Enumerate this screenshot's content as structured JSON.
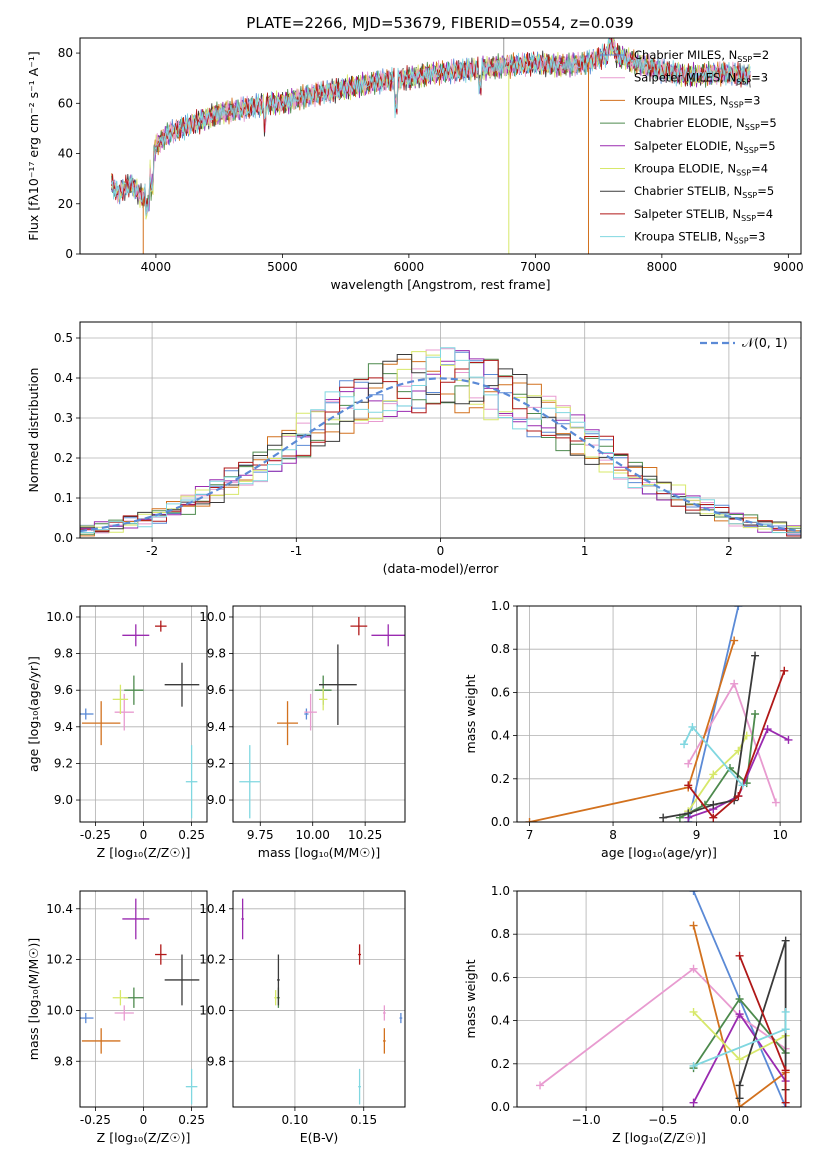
{
  "figure_title": "PLATE=2266, MJD=53679, FIBERID=0554, z=0.039",
  "models": [
    {
      "name": "Chabrier MILES",
      "nssp": "2",
      "color": "#5b8ad6"
    },
    {
      "name": "Salpeter MILES",
      "nssp": "3",
      "color": "#e89bd0"
    },
    {
      "name": "Kroupa MILES",
      "nssp": "3",
      "color": "#d2711e"
    },
    {
      "name": "Chabrier ELODIE",
      "nssp": "5",
      "color": "#4d8a4d"
    },
    {
      "name": "Salpeter ELODIE",
      "nssp": "5",
      "color": "#9a2ab0"
    },
    {
      "name": "Kroupa ELODIE",
      "nssp": "4",
      "color": "#d7e86a"
    },
    {
      "name": "Chabrier STELIB",
      "nssp": "5",
      "color": "#3a3a3a"
    },
    {
      "name": "Salpeter STELIB",
      "nssp": "4",
      "color": "#b01818"
    },
    {
      "name": "Kroupa STELIB",
      "nssp": "3",
      "color": "#80d7e0"
    }
  ],
  "legend_suffix": "N",
  "legend_sub": "SSP",
  "chart_data": [
    {
      "id": "spectrum",
      "type": "line",
      "xlabel": "wavelength [Angstrom, rest frame]",
      "ylabel": "Flux [fλ10⁻¹⁷ erg cm⁻² s⁻¹ A⁻¹]",
      "xlim": [
        3400,
        9100
      ],
      "ylim": [
        0,
        86
      ],
      "xticks": [
        4000,
        5000,
        6000,
        7000,
        8000,
        9000
      ],
      "yticks": [
        0,
        20,
        40,
        60,
        80
      ],
      "x": [
        3650,
        3700,
        3800,
        3900,
        4000,
        4100,
        4200,
        4300,
        4400,
        4500,
        4600,
        4700,
        4800,
        4900,
        5000,
        5200,
        5400,
        5600,
        5800,
        6000,
        6200,
        6400,
        6600,
        6800,
        7000,
        7200,
        7400,
        7600,
        7800,
        8000,
        8200,
        8500,
        8700
      ],
      "y": [
        28,
        24,
        28,
        22,
        43,
        48,
        50,
        52,
        54,
        56,
        57,
        58,
        59,
        60,
        60,
        63,
        65,
        67,
        69,
        70,
        72,
        73,
        74,
        75,
        76,
        75,
        76,
        80,
        76,
        73,
        71,
        72,
        71
      ],
      "legend_location": "upper right"
    },
    {
      "id": "residual-hist",
      "type": "line",
      "xlabel": "(data-model)/error",
      "ylabel": "Normed distribution",
      "xlim": [
        -2.5,
        2.5
      ],
      "ylim": [
        0,
        0.54
      ],
      "xticks": [
        -2,
        -1,
        0,
        1,
        2
      ],
      "yticks": [
        0.0,
        0.1,
        0.2,
        0.3,
        0.4,
        0.5
      ],
      "grid": true,
      "series": [
        {
          "name": "𝒩(0, 1)",
          "style": "dashed",
          "color": "#5b8ad6"
        }
      ],
      "legend_location": "upper right"
    },
    {
      "id": "age-vs-z",
      "type": "scatter",
      "xlabel": "Z [log₁₀(Z/Z☉)]",
      "ylabel": "age  [log₁₀(age/yr)]",
      "xlim": [
        -0.33,
        0.33
      ],
      "ylim": [
        8.88,
        10.06
      ],
      "xticks": [
        -0.25,
        0.0,
        0.25
      ],
      "yticks": [
        9.0,
        9.2,
        9.4,
        9.6,
        9.8,
        10.0
      ],
      "grid": true,
      "points": [
        {
          "model": 0,
          "x": -0.3,
          "y": 9.47,
          "xerr": 0.04,
          "yerr": 0.03
        },
        {
          "model": 1,
          "x": -0.1,
          "y": 9.48,
          "xerr": 0.05,
          "yerr": 0.1
        },
        {
          "model": 2,
          "x": -0.22,
          "y": 9.42,
          "xerr": 0.1,
          "yerr": 0.12
        },
        {
          "model": 3,
          "x": -0.05,
          "y": 9.6,
          "xerr": 0.05,
          "yerr": 0.08
        },
        {
          "model": 4,
          "x": -0.04,
          "y": 9.9,
          "xerr": 0.07,
          "yerr": 0.06
        },
        {
          "model": 5,
          "x": -0.12,
          "y": 9.55,
          "xerr": 0.04,
          "yerr": 0.08
        },
        {
          "model": 6,
          "x": 0.2,
          "y": 9.63,
          "xerr": 0.09,
          "yerr": 0.12
        },
        {
          "model": 7,
          "x": 0.09,
          "y": 9.95,
          "xerr": 0.03,
          "yerr": 0.03
        },
        {
          "model": 8,
          "x": 0.25,
          "y": 9.1,
          "xerr": 0.03,
          "yerr": 0.2
        }
      ]
    },
    {
      "id": "age-vs-mass",
      "type": "scatter",
      "xlabel": "mass [log₁₀(M/M☉)]",
      "ylabel": "",
      "xlim": [
        9.62,
        10.44
      ],
      "ylim": [
        8.88,
        10.06
      ],
      "xticks": [
        9.75,
        10.0,
        10.25
      ],
      "xtick_labels": [
        "9.75",
        "10.00",
        "10.25"
      ],
      "yticks": [
        9.0,
        9.2,
        9.4,
        9.6,
        9.8,
        10.0
      ],
      "grid": true,
      "points": [
        {
          "model": 0,
          "x": 9.97,
          "y": 9.47,
          "xerr": 0.01,
          "yerr": 0.03
        },
        {
          "model": 1,
          "x": 9.99,
          "y": 9.48,
          "xerr": 0.03,
          "yerr": 0.1
        },
        {
          "model": 2,
          "x": 9.88,
          "y": 9.42,
          "xerr": 0.05,
          "yerr": 0.12
        },
        {
          "model": 3,
          "x": 10.05,
          "y": 9.6,
          "xerr": 0.04,
          "yerr": 0.08
        },
        {
          "model": 4,
          "x": 10.36,
          "y": 9.9,
          "xerr": 0.08,
          "yerr": 0.06
        },
        {
          "model": 5,
          "x": 10.05,
          "y": 9.55,
          "xerr": 0.02,
          "yerr": 0.06
        },
        {
          "model": 6,
          "x": 10.12,
          "y": 9.63,
          "xerr": 0.09,
          "yerr": 0.22
        },
        {
          "model": 7,
          "x": 10.22,
          "y": 9.95,
          "xerr": 0.04,
          "yerr": 0.05
        },
        {
          "model": 8,
          "x": 9.7,
          "y": 9.1,
          "xerr": 0.05,
          "yerr": 0.2
        }
      ]
    },
    {
      "id": "weight-vs-age",
      "type": "line",
      "xlabel": "age  [log₁₀(age/yr)]",
      "ylabel": "mass weight",
      "xlim": [
        6.85,
        10.25
      ],
      "ylim": [
        0,
        1.0
      ],
      "xticks": [
        7,
        8,
        9,
        10
      ],
      "yticks": [
        0.0,
        0.2,
        0.4,
        0.6,
        0.8,
        1.0
      ],
      "grid": true,
      "series": [
        {
          "model": 0,
          "x": [
            8.9,
            9.5
          ],
          "y": [
            0.0,
            1.0
          ]
        },
        {
          "model": 1,
          "x": [
            8.9,
            9.45,
            9.95
          ],
          "y": [
            0.27,
            0.64,
            0.09
          ]
        },
        {
          "model": 2,
          "x": [
            7.0,
            8.9,
            9.45
          ],
          "y": [
            0.0,
            0.16,
            0.84
          ]
        },
        {
          "model": 3,
          "x": [
            8.8,
            9.1,
            9.4,
            9.6,
            9.7
          ],
          "y": [
            0.02,
            0.08,
            0.25,
            0.18,
            0.5
          ]
        },
        {
          "model": 4,
          "x": [
            8.9,
            9.2,
            9.5,
            9.85,
            10.1
          ],
          "y": [
            0.02,
            0.06,
            0.12,
            0.43,
            0.38
          ]
        },
        {
          "model": 5,
          "x": [
            8.9,
            9.2,
            9.5,
            9.6
          ],
          "y": [
            0.05,
            0.22,
            0.33,
            0.4
          ]
        },
        {
          "model": 6,
          "x": [
            8.6,
            8.9,
            9.2,
            9.45,
            9.7
          ],
          "y": [
            0.02,
            0.04,
            0.08,
            0.1,
            0.77
          ]
        },
        {
          "model": 7,
          "x": [
            8.9,
            9.2,
            9.5,
            10.05
          ],
          "y": [
            0.17,
            0.02,
            0.12,
            0.7
          ]
        },
        {
          "model": 8,
          "x": [
            8.85,
            8.95,
            9.55
          ],
          "y": [
            0.36,
            0.44,
            0.17
          ]
        }
      ]
    },
    {
      "id": "mass-vs-z",
      "type": "scatter",
      "xlabel": "Z [log₁₀(Z/Z☉)]",
      "ylabel": "mass [log₁₀(M/M☉)]",
      "xlim": [
        -0.33,
        0.33
      ],
      "ylim": [
        9.62,
        10.47
      ],
      "xticks": [
        -0.25,
        0.0,
        0.25
      ],
      "yticks": [
        9.8,
        10.0,
        10.2,
        10.4
      ],
      "grid": true,
      "points": [
        {
          "model": 0,
          "x": -0.3,
          "y": 9.97,
          "xerr": 0.04,
          "yerr": 0.02
        },
        {
          "model": 1,
          "x": -0.1,
          "y": 9.99,
          "xerr": 0.05,
          "yerr": 0.03
        },
        {
          "model": 2,
          "x": -0.22,
          "y": 9.88,
          "xerr": 0.1,
          "yerr": 0.05
        },
        {
          "model": 3,
          "x": -0.05,
          "y": 10.05,
          "xerr": 0.05,
          "yerr": 0.04
        },
        {
          "model": 4,
          "x": -0.04,
          "y": 10.36,
          "xerr": 0.07,
          "yerr": 0.08
        },
        {
          "model": 5,
          "x": -0.12,
          "y": 10.05,
          "xerr": 0.04,
          "yerr": 0.03
        },
        {
          "model": 6,
          "x": 0.2,
          "y": 10.12,
          "xerr": 0.09,
          "yerr": 0.1
        },
        {
          "model": 7,
          "x": 0.09,
          "y": 10.22,
          "xerr": 0.03,
          "yerr": 0.04
        },
        {
          "model": 8,
          "x": 0.25,
          "y": 9.7,
          "xerr": 0.03,
          "yerr": 0.07
        }
      ]
    },
    {
      "id": "mass-vs-ebv",
      "type": "scatter",
      "xlabel": "E(B-V)",
      "ylabel": "",
      "xlim": [
        0.055,
        0.18
      ],
      "ylim": [
        9.62,
        10.47
      ],
      "xticks": [
        0.1,
        0.15
      ],
      "xtick_labels": [
        "0.10",
        "0.15"
      ],
      "yticks": [
        9.8,
        10.0,
        10.2,
        10.4
      ],
      "grid": true,
      "points": [
        {
          "model": 0,
          "x": 0.177,
          "y": 9.97,
          "xerr": 0.001,
          "yerr": 0.02
        },
        {
          "model": 1,
          "x": 0.165,
          "y": 9.99,
          "xerr": 0.001,
          "yerr": 0.03
        },
        {
          "model": 2,
          "x": 0.165,
          "y": 9.88,
          "xerr": 0.001,
          "yerr": 0.05
        },
        {
          "model": 3,
          "x": 0.088,
          "y": 10.05,
          "xerr": 0.001,
          "yerr": 0.04
        },
        {
          "model": 4,
          "x": 0.062,
          "y": 10.36,
          "xerr": 0.001,
          "yerr": 0.08
        },
        {
          "model": 5,
          "x": 0.086,
          "y": 10.05,
          "xerr": 0.001,
          "yerr": 0.03
        },
        {
          "model": 6,
          "x": 0.088,
          "y": 10.12,
          "xerr": 0.001,
          "yerr": 0.1
        },
        {
          "model": 7,
          "x": 0.147,
          "y": 10.22,
          "xerr": 0.001,
          "yerr": 0.04
        },
        {
          "model": 8,
          "x": 0.147,
          "y": 9.7,
          "xerr": 0.001,
          "yerr": 0.07
        }
      ]
    },
    {
      "id": "weight-vs-z",
      "type": "line",
      "xlabel": "Z [log₁₀(Z/Z☉)]",
      "ylabel": "mass weight",
      "xlim": [
        -1.45,
        0.4
      ],
      "ylim": [
        0,
        1.0
      ],
      "xticks": [
        -1.0,
        -0.5,
        0.0
      ],
      "xtick_labels": [
        "−1.0",
        "−0.5",
        "0.0"
      ],
      "yticks": [
        0.0,
        0.2,
        0.4,
        0.6,
        0.8,
        1.0
      ],
      "grid": true,
      "series": [
        {
          "model": 0,
          "x": [
            -0.3,
            0.3
          ],
          "y": [
            1.0,
            0.0
          ]
        },
        {
          "model": 1,
          "x": [
            -1.3,
            -0.3,
            0.0,
            0.3
          ],
          "y": [
            0.1,
            0.64,
            0.42,
            0.27
          ]
        },
        {
          "model": 2,
          "x": [
            -0.3,
            0.0,
            0.3
          ],
          "y": [
            0.84,
            0.0,
            0.16
          ]
        },
        {
          "model": 3,
          "x": [
            -0.3,
            0.0,
            0.3
          ],
          "y": [
            0.18,
            0.5,
            0.25
          ]
        },
        {
          "model": 4,
          "x": [
            -0.3,
            0.0,
            0.3
          ],
          "y": [
            0.02,
            0.43,
            0.12
          ]
        },
        {
          "model": 5,
          "x": [
            -0.3,
            0.0,
            0.3
          ],
          "y": [
            0.44,
            0.22,
            0.33
          ]
        },
        {
          "model": 6,
          "x": [
            0.0,
            0.0,
            0.3,
            0.3
          ],
          "y": [
            0.04,
            0.1,
            0.77,
            0.08
          ]
        },
        {
          "model": 7,
          "x": [
            0.0,
            0.3,
            0.3
          ],
          "y": [
            0.7,
            0.17,
            0.02
          ]
        },
        {
          "model": 8,
          "x": [
            -0.3,
            0.3,
            0.3
          ],
          "y": [
            0.19,
            0.36,
            0.44
          ]
        }
      ]
    }
  ]
}
